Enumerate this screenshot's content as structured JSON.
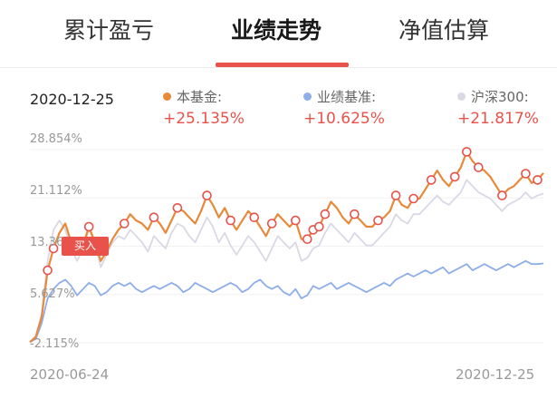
{
  "tabs": [
    {
      "label": "累计盈亏"
    },
    {
      "label": "业绩走势"
    },
    {
      "label": "净值估算"
    }
  ],
  "active_tab": 1,
  "header": {
    "date": "2020-12-25",
    "legend": [
      {
        "name": "本基金:",
        "value": "+25.135%",
        "color": "#e8893a"
      },
      {
        "name": "业绩基准:",
        "value": "+10.625%",
        "color": "#8eaee8"
      },
      {
        "name": "沪深300:",
        "value": "+21.817%",
        "color": "#d9d9e6"
      }
    ]
  },
  "buy_label": "买入",
  "chart_data": {
    "type": "line",
    "x_start": "2020-06-24",
    "x_end": "2020-12-25",
    "y_ticks": [
      "28.854%",
      "21.112%",
      "13.36",
      "5.627%",
      "-2.115%"
    ],
    "ylim": [
      -2.115,
      28.854
    ],
    "series": [
      {
        "name": "本基金",
        "color": "#e8893a",
        "values": [
          -2.0,
          -1.2,
          2.0,
          9.5,
          13.0,
          15.5,
          17.0,
          14.0,
          12.0,
          13.5,
          16.5,
          14.0,
          11.0,
          12.5,
          14.5,
          16.0,
          17.0,
          18.5,
          17.5,
          17.0,
          16.0,
          18.0,
          17.0,
          15.5,
          17.5,
          19.5,
          19.0,
          18.0,
          17.0,
          19.0,
          21.5,
          20.0,
          18.0,
          19.5,
          17.5,
          16.0,
          17.5,
          19.0,
          18.0,
          16.5,
          15.0,
          17.0,
          18.5,
          17.5,
          16.5,
          17.5,
          14.5,
          14.5,
          16.0,
          16.5,
          18.5,
          20.5,
          19.5,
          18.0,
          17.0,
          18.5,
          17.5,
          16.5,
          16.5,
          17.5,
          18.0,
          19.0,
          21.5,
          20.0,
          19.5,
          21.0,
          21.0,
          22.5,
          24.0,
          25.5,
          24.0,
          23.0,
          24.5,
          26.0,
          28.5,
          27.0,
          26.0,
          25.5,
          24.5,
          23.0,
          21.5,
          22.5,
          23.0,
          24.0,
          25.0,
          23.5,
          24.0,
          25.1
        ]
      },
      {
        "name": "业绩基准",
        "color": "#8eaee8",
        "values": [
          -2.0,
          -1.5,
          1.0,
          5.0,
          6.5,
          7.5,
          8.0,
          7.0,
          5.5,
          6.5,
          7.5,
          7.0,
          5.5,
          6.0,
          7.0,
          7.5,
          7.0,
          7.5,
          6.5,
          6.0,
          6.5,
          7.0,
          6.5,
          7.0,
          7.5,
          7.0,
          6.0,
          6.5,
          7.5,
          7.0,
          6.5,
          6.0,
          6.5,
          7.0,
          7.5,
          7.0,
          6.0,
          6.5,
          7.5,
          8.0,
          7.0,
          6.5,
          7.0,
          6.0,
          5.5,
          6.5,
          5.0,
          5.5,
          7.0,
          6.5,
          7.0,
          7.5,
          6.5,
          7.0,
          7.5,
          7.0,
          6.5,
          6.0,
          6.5,
          7.0,
          7.5,
          7.0,
          8.0,
          8.5,
          9.0,
          8.5,
          9.0,
          9.5,
          9.0,
          9.5,
          10.0,
          9.0,
          9.5,
          10.0,
          10.5,
          9.5,
          10.0,
          10.5,
          10.0,
          9.5,
          10.0,
          10.5,
          10.0,
          10.5,
          11.0,
          10.5,
          10.5,
          10.6
        ]
      },
      {
        "name": "沪深300",
        "color": "#d9d9e6",
        "values": [
          -2.0,
          -1.0,
          2.5,
          11.0,
          16.0,
          17.5,
          16.0,
          13.0,
          11.0,
          13.0,
          16.0,
          14.0,
          10.0,
          12.0,
          14.0,
          15.0,
          14.5,
          16.0,
          15.0,
          14.0,
          12.5,
          15.0,
          14.0,
          13.0,
          15.5,
          17.0,
          16.5,
          15.0,
          14.0,
          16.0,
          18.0,
          16.5,
          14.0,
          15.5,
          13.5,
          12.0,
          13.5,
          15.0,
          14.0,
          12.5,
          11.0,
          13.0,
          15.0,
          14.0,
          13.0,
          14.0,
          11.0,
          11.5,
          13.0,
          13.5,
          15.5,
          17.0,
          16.0,
          15.0,
          14.0,
          15.5,
          14.5,
          13.5,
          13.5,
          14.5,
          15.5,
          16.5,
          18.5,
          17.5,
          17.0,
          18.5,
          18.5,
          19.5,
          20.5,
          21.5,
          20.5,
          20.0,
          21.0,
          22.0,
          24.0,
          23.0,
          22.0,
          21.5,
          21.0,
          20.0,
          19.0,
          20.0,
          20.5,
          21.0,
          22.0,
          21.0,
          21.5,
          21.8
        ]
      }
    ]
  }
}
